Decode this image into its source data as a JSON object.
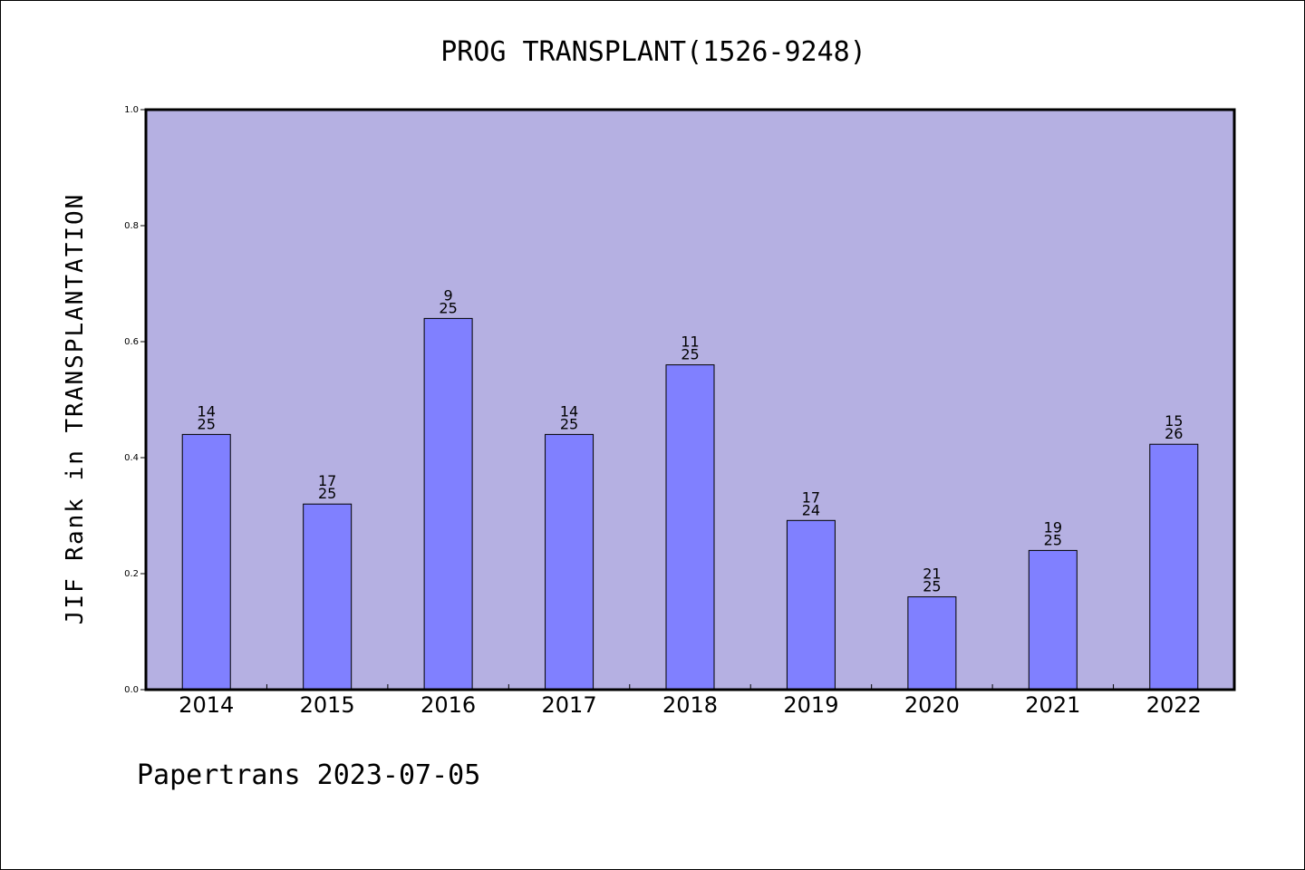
{
  "footer": "Papertrans 2023-07-05",
  "chart_data": {
    "type": "bar",
    "title": "PROG TRANSPLANT(1526-9248)",
    "xlabel": "",
    "ylabel": "JIF Rank in TRANSPLANTATION",
    "ylim": [
      0,
      1.0
    ],
    "yticks": [
      "0.0",
      "0.2",
      "0.4",
      "0.6",
      "0.8",
      "1.0"
    ],
    "categories": [
      "2014",
      "2015",
      "2016",
      "2017",
      "2018",
      "2019",
      "2020",
      "2021",
      "2022"
    ],
    "values": [
      0.44,
      0.32,
      0.64,
      0.44,
      0.56,
      0.2917,
      0.16,
      0.24,
      0.4231
    ],
    "ranks": [
      "14",
      "17",
      "9",
      "14",
      "11",
      "17",
      "21",
      "19",
      "15"
    ],
    "totals": [
      "25",
      "25",
      "25",
      "25",
      "25",
      "24",
      "25",
      "25",
      "26"
    ],
    "colors": {
      "plot_background": "#b5b0e2",
      "bar_fill": "#8080ff",
      "bar_stroke": "#000000"
    },
    "grid": false,
    "legend": "none"
  }
}
